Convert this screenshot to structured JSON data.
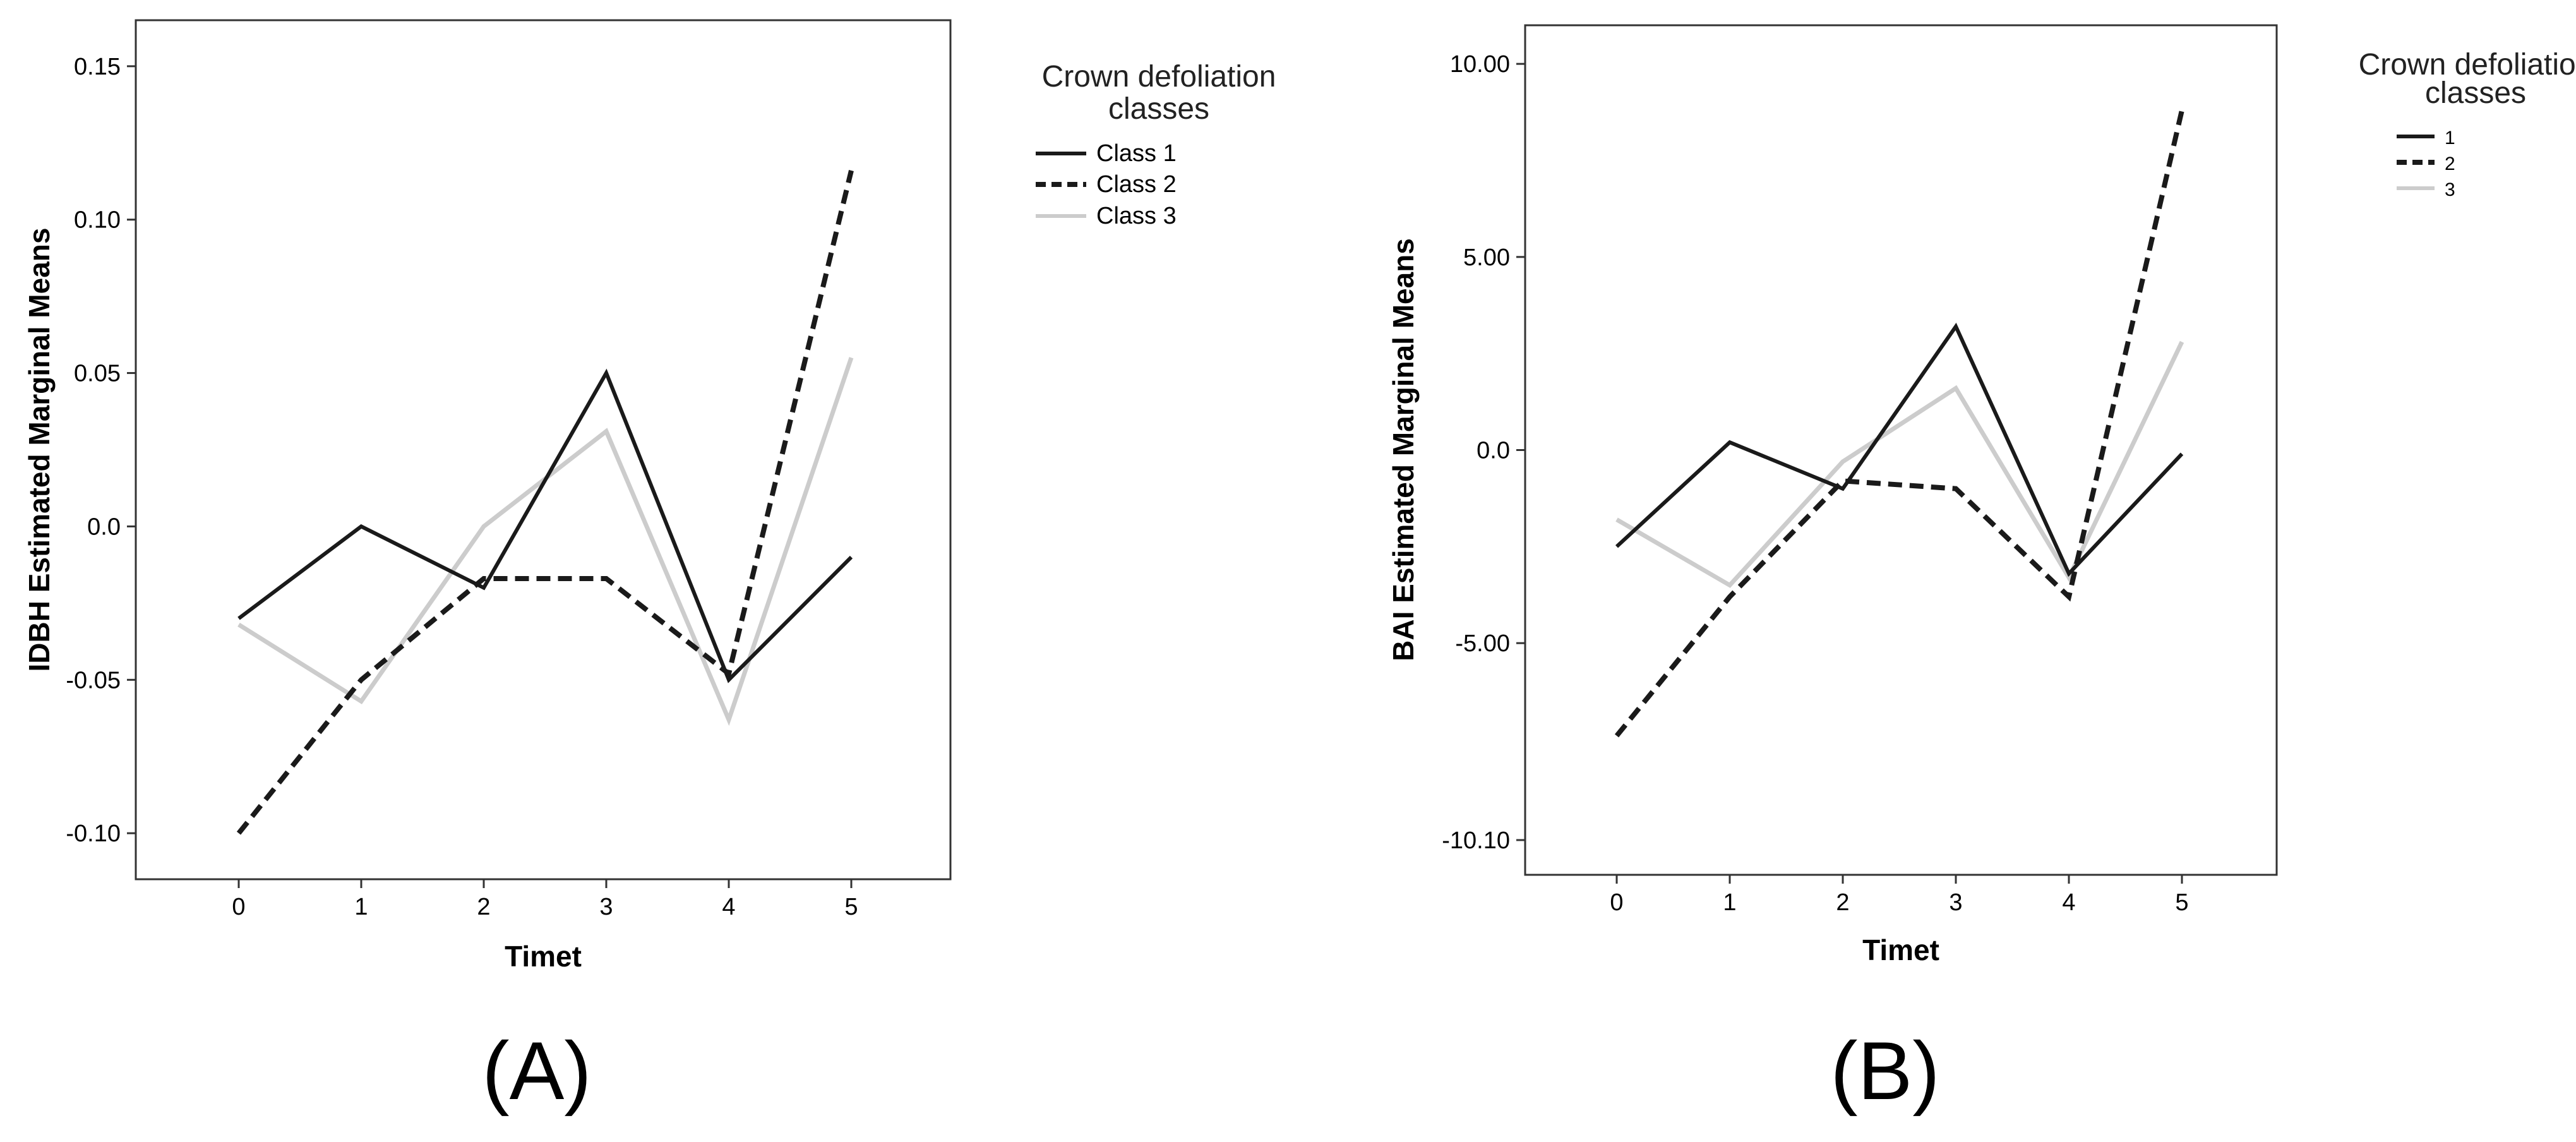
{
  "chart_data": [
    {
      "type": "line",
      "panel_label": "(A)",
      "xlabel": "Timet",
      "ylabel": "IDBH Estimated Marginal Means",
      "categories": [
        "0",
        "1",
        "2",
        "3",
        "4",
        "5"
      ],
      "ylim": [
        -0.115,
        0.165
      ],
      "yticks": [
        0.15,
        0.1,
        0.05,
        0.0,
        -0.05,
        -0.1
      ],
      "ytick_labels": [
        "0.15",
        "0.10",
        "0.05",
        "0.0",
        "-0.05",
        "-0.10"
      ],
      "legend": {
        "title_lines": [
          "Crown defoliation",
          "classes"
        ],
        "position": "right"
      },
      "series": [
        {
          "name": "Class 1",
          "style": "solid",
          "color": "#1a1a1a",
          "values": [
            -0.03,
            0.0,
            -0.02,
            0.05,
            -0.05,
            -0.01
          ]
        },
        {
          "name": "Class 2",
          "style": "dashed",
          "color": "#1a1a1a",
          "values": [
            -0.1,
            -0.05,
            -0.017,
            -0.017,
            -0.048,
            0.116
          ]
        },
        {
          "name": "Class 3",
          "style": "solid",
          "color": "#cccccc",
          "values": [
            -0.032,
            -0.057,
            0.0,
            0.031,
            -0.063,
            0.055
          ]
        }
      ]
    },
    {
      "type": "line",
      "panel_label": "(B)",
      "xlabel": "Timet",
      "ylabel": "BAI Estimated Marginal Means",
      "categories": [
        "0",
        "1",
        "2",
        "3",
        "4",
        "5"
      ],
      "ylim": [
        -11.0,
        11.0
      ],
      "yticks": [
        10.0,
        5.0,
        0.0,
        -5.0,
        -10.1
      ],
      "ytick_labels": [
        "10.00",
        "5.00",
        "0.0",
        "-5.00",
        "-10.10"
      ],
      "legend": {
        "title_lines": [
          "Crown defoliation",
          "classes"
        ],
        "position": "right"
      },
      "series": [
        {
          "name": "1",
          "style": "solid",
          "color": "#1a1a1a",
          "values": [
            -2.5,
            0.2,
            -1.0,
            3.2,
            -3.2,
            -0.1
          ]
        },
        {
          "name": "2",
          "style": "dashed",
          "color": "#1a1a1a",
          "values": [
            -7.4,
            -3.8,
            -0.8,
            -1.0,
            -3.8,
            8.8
          ]
        },
        {
          "name": "3",
          "style": "solid",
          "color": "#cccccc",
          "values": [
            -1.8,
            -3.5,
            -0.3,
            1.6,
            -3.3,
            2.8
          ]
        }
      ]
    }
  ]
}
